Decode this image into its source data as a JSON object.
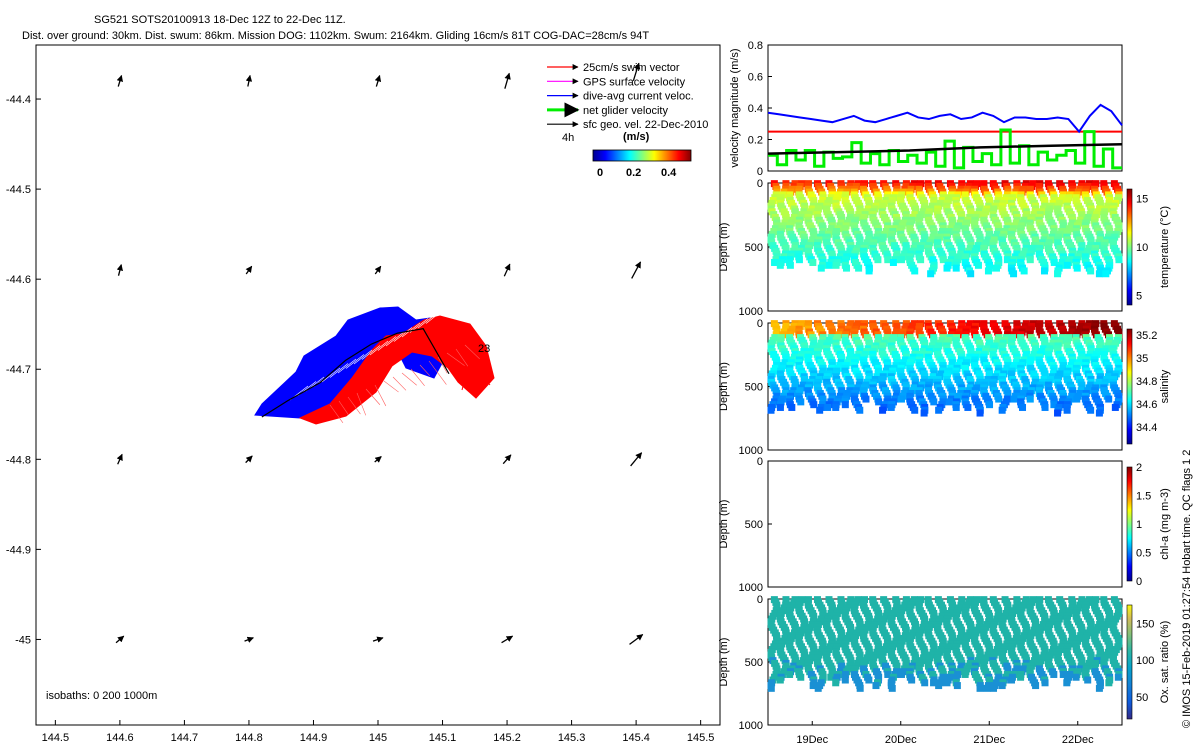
{
  "title_line1": "SG521 SOTS20100913 18-Dec 12Z to 22-Dec 11Z.",
  "title_line2": "Dist. over ground: 30km. Dist. swum: 86km. Mission DOG: 1102km. Swum: 2164km. Gliding 16cm/s 81T COG-DAC=28cm/s 94T",
  "side_label": "© IMOS 15-Feb-2019 01:27:54 Hobart time. QC flags 1  2",
  "colors": {
    "swim": "#ff0000",
    "gps": "#ff00ff",
    "dac": "#0000ff",
    "net": "#00ee00",
    "sfc": "#000000",
    "track_blue": "#0000ff",
    "track_red": "#ff0000"
  },
  "chart_data": [
    {
      "id": "map",
      "type": "scatter",
      "xticks": [
        "144.5",
        "144.6",
        "144.7",
        "144.8",
        "144.9",
        "145",
        "145.1",
        "145.2",
        "145.3",
        "145.4",
        "145.5"
      ],
      "xrange": [
        144.47,
        145.53
      ],
      "yticks": [
        "-44.4",
        "-44.5",
        "-44.6",
        "-44.7",
        "-44.8",
        "-44.9",
        "-45"
      ],
      "yrange": [
        -45.095,
        -44.34
      ],
      "legend": [
        {
          "label": "25cm/s swim vector",
          "color": "#ff0000"
        },
        {
          "label": "GPS surface velocity",
          "color": "#ff00ff"
        },
        {
          "label": "dive-avg current veloc.",
          "color": "#0000ff"
        },
        {
          "label": "net glider velocity",
          "color": "#00ee00"
        },
        {
          "label": "sfc geo. vel. 22-Dec-2010",
          "color": "#000000"
        }
      ],
      "scale_label": "4h",
      "colorbar_title": "(m/s)",
      "colorbar_ticks": [
        "0",
        "0.2",
        "0.4"
      ],
      "isobaths_label": "isobaths: 0   200  1000m",
      "dive_label": "23",
      "geo_vectors": [
        {
          "lon": 144.6,
          "lat": -44.38,
          "u": -0.3,
          "v": 1.0
        },
        {
          "lon": 144.8,
          "lat": -44.38,
          "u": -0.2,
          "v": 1.0
        },
        {
          "lon": 145.0,
          "lat": -44.38,
          "u": -0.3,
          "v": 1.0
        },
        {
          "lon": 145.2,
          "lat": -44.38,
          "u": -0.4,
          "v": 1.4
        },
        {
          "lon": 145.4,
          "lat": -44.37,
          "u": -0.5,
          "v": 1.6
        },
        {
          "lon": 144.6,
          "lat": -44.59,
          "u": -0.25,
          "v": 1.0
        },
        {
          "lon": 144.8,
          "lat": -44.59,
          "u": -0.5,
          "v": 0.7
        },
        {
          "lon": 145.0,
          "lat": -44.59,
          "u": -0.5,
          "v": 0.7
        },
        {
          "lon": 145.2,
          "lat": -44.59,
          "u": -0.5,
          "v": 1.1
        },
        {
          "lon": 145.4,
          "lat": -44.59,
          "u": -0.8,
          "v": 1.5
        },
        {
          "lon": 144.6,
          "lat": -44.8,
          "u": -0.4,
          "v": 0.9
        },
        {
          "lon": 144.8,
          "lat": -44.8,
          "u": -0.6,
          "v": 0.6
        },
        {
          "lon": 145.0,
          "lat": -44.8,
          "u": -0.6,
          "v": 0.5
        },
        {
          "lon": 145.2,
          "lat": -44.8,
          "u": -0.7,
          "v": 0.8
        },
        {
          "lon": 145.4,
          "lat": -44.8,
          "u": -1.0,
          "v": 1.2
        },
        {
          "lon": 144.6,
          "lat": -45.0,
          "u": -0.7,
          "v": 0.6
        },
        {
          "lon": 144.8,
          "lat": -45.0,
          "u": -0.8,
          "v": 0.3
        },
        {
          "lon": 145.0,
          "lat": -45.0,
          "u": -0.9,
          "v": 0.3
        },
        {
          "lon": 145.2,
          "lat": -45.0,
          "u": -1.0,
          "v": 0.6
        },
        {
          "lon": 145.4,
          "lat": -45.0,
          "u": -1.2,
          "v": 0.9
        }
      ],
      "track": [
        {
          "lon": 144.82,
          "lat": -44.753
        },
        {
          "lon": 144.86,
          "lat": -44.735
        },
        {
          "lon": 144.91,
          "lat": -44.715
        },
        {
          "lon": 144.95,
          "lat": -44.69
        },
        {
          "lon": 144.99,
          "lat": -44.672
        },
        {
          "lon": 145.03,
          "lat": -44.66
        },
        {
          "lon": 145.07,
          "lat": -44.655
        },
        {
          "lon": 145.11,
          "lat": -44.705
        }
      ]
    },
    {
      "id": "velocity",
      "type": "line",
      "ylabel": "velocity magnitude (m/s)",
      "ylim": [
        0,
        0.8
      ],
      "yticks": [
        "0",
        "0.2",
        "0.4",
        "0.6",
        "0.8"
      ],
      "x_days": [
        18.5,
        22.5
      ],
      "swim_speed": 0.25,
      "dac": [
        0.37,
        0.36,
        0.35,
        0.34,
        0.33,
        0.32,
        0.31,
        0.33,
        0.35,
        0.32,
        0.31,
        0.33,
        0.35,
        0.37,
        0.34,
        0.33,
        0.35,
        0.36,
        0.33,
        0.34,
        0.37,
        0.35,
        0.31,
        0.34,
        0.34,
        0.33,
        0.33,
        0.34,
        0.33,
        0.25,
        0.35,
        0.42,
        0.38,
        0.29
      ],
      "sfc_geo": [
        0.11,
        0.12,
        0.13,
        0.15,
        0.16,
        0.17
      ],
      "net": [
        0.1,
        0.04,
        0.13,
        0.07,
        0.13,
        0.03,
        0.12,
        0.08,
        0.09,
        0.18,
        0.05,
        0.11,
        0.04,
        0.13,
        0.06,
        0.1,
        0.05,
        0.12,
        0.03,
        0.19,
        0.02,
        0.15,
        0.06,
        0.11,
        0.04,
        0.26,
        0.05,
        0.16,
        0.04,
        0.12,
        0.07,
        0.1,
        0.13,
        0.05,
        0.25,
        0.03,
        0.14,
        0.02
      ]
    },
    {
      "id": "temperature",
      "type": "scatter",
      "ylabel": "Depth (m)",
      "yticks": [
        "0",
        "500",
        "1000"
      ],
      "cbar_label": "temperature (°C)",
      "cbar_ticks": [
        "5",
        "10",
        "15"
      ],
      "cbar_range": [
        4,
        16
      ]
    },
    {
      "id": "salinity",
      "type": "scatter",
      "ylabel": "Depth (m)",
      "yticks": [
        "0",
        "500",
        "1000"
      ],
      "cbar_label": "salinity",
      "cbar_ticks": [
        "34.4",
        "34.6",
        "34.8",
        "35",
        "35.2"
      ],
      "cbar_range": [
        34.25,
        35.25
      ]
    },
    {
      "id": "chla",
      "type": "scatter",
      "ylabel": "Depth (m)",
      "yticks": [
        "0",
        "500",
        "1000"
      ],
      "cbar_label": "chl-a (mg m-3)",
      "cbar_ticks": [
        "0",
        "0.5",
        "1",
        "1.5",
        "2"
      ],
      "cbar_range": [
        0,
        2
      ]
    },
    {
      "id": "oxygen",
      "type": "scatter",
      "ylabel": "Depth (m)",
      "yticks": [
        "0",
        "500",
        "1000"
      ],
      "cbar_label": "Ox. sat. ratio (%)",
      "cbar_ticks": [
        "50",
        "100",
        "150"
      ],
      "cbar_range": [
        20,
        175
      ],
      "xticks": [
        "19Dec",
        "20Dec",
        "21Dec",
        "22Dec"
      ]
    }
  ]
}
